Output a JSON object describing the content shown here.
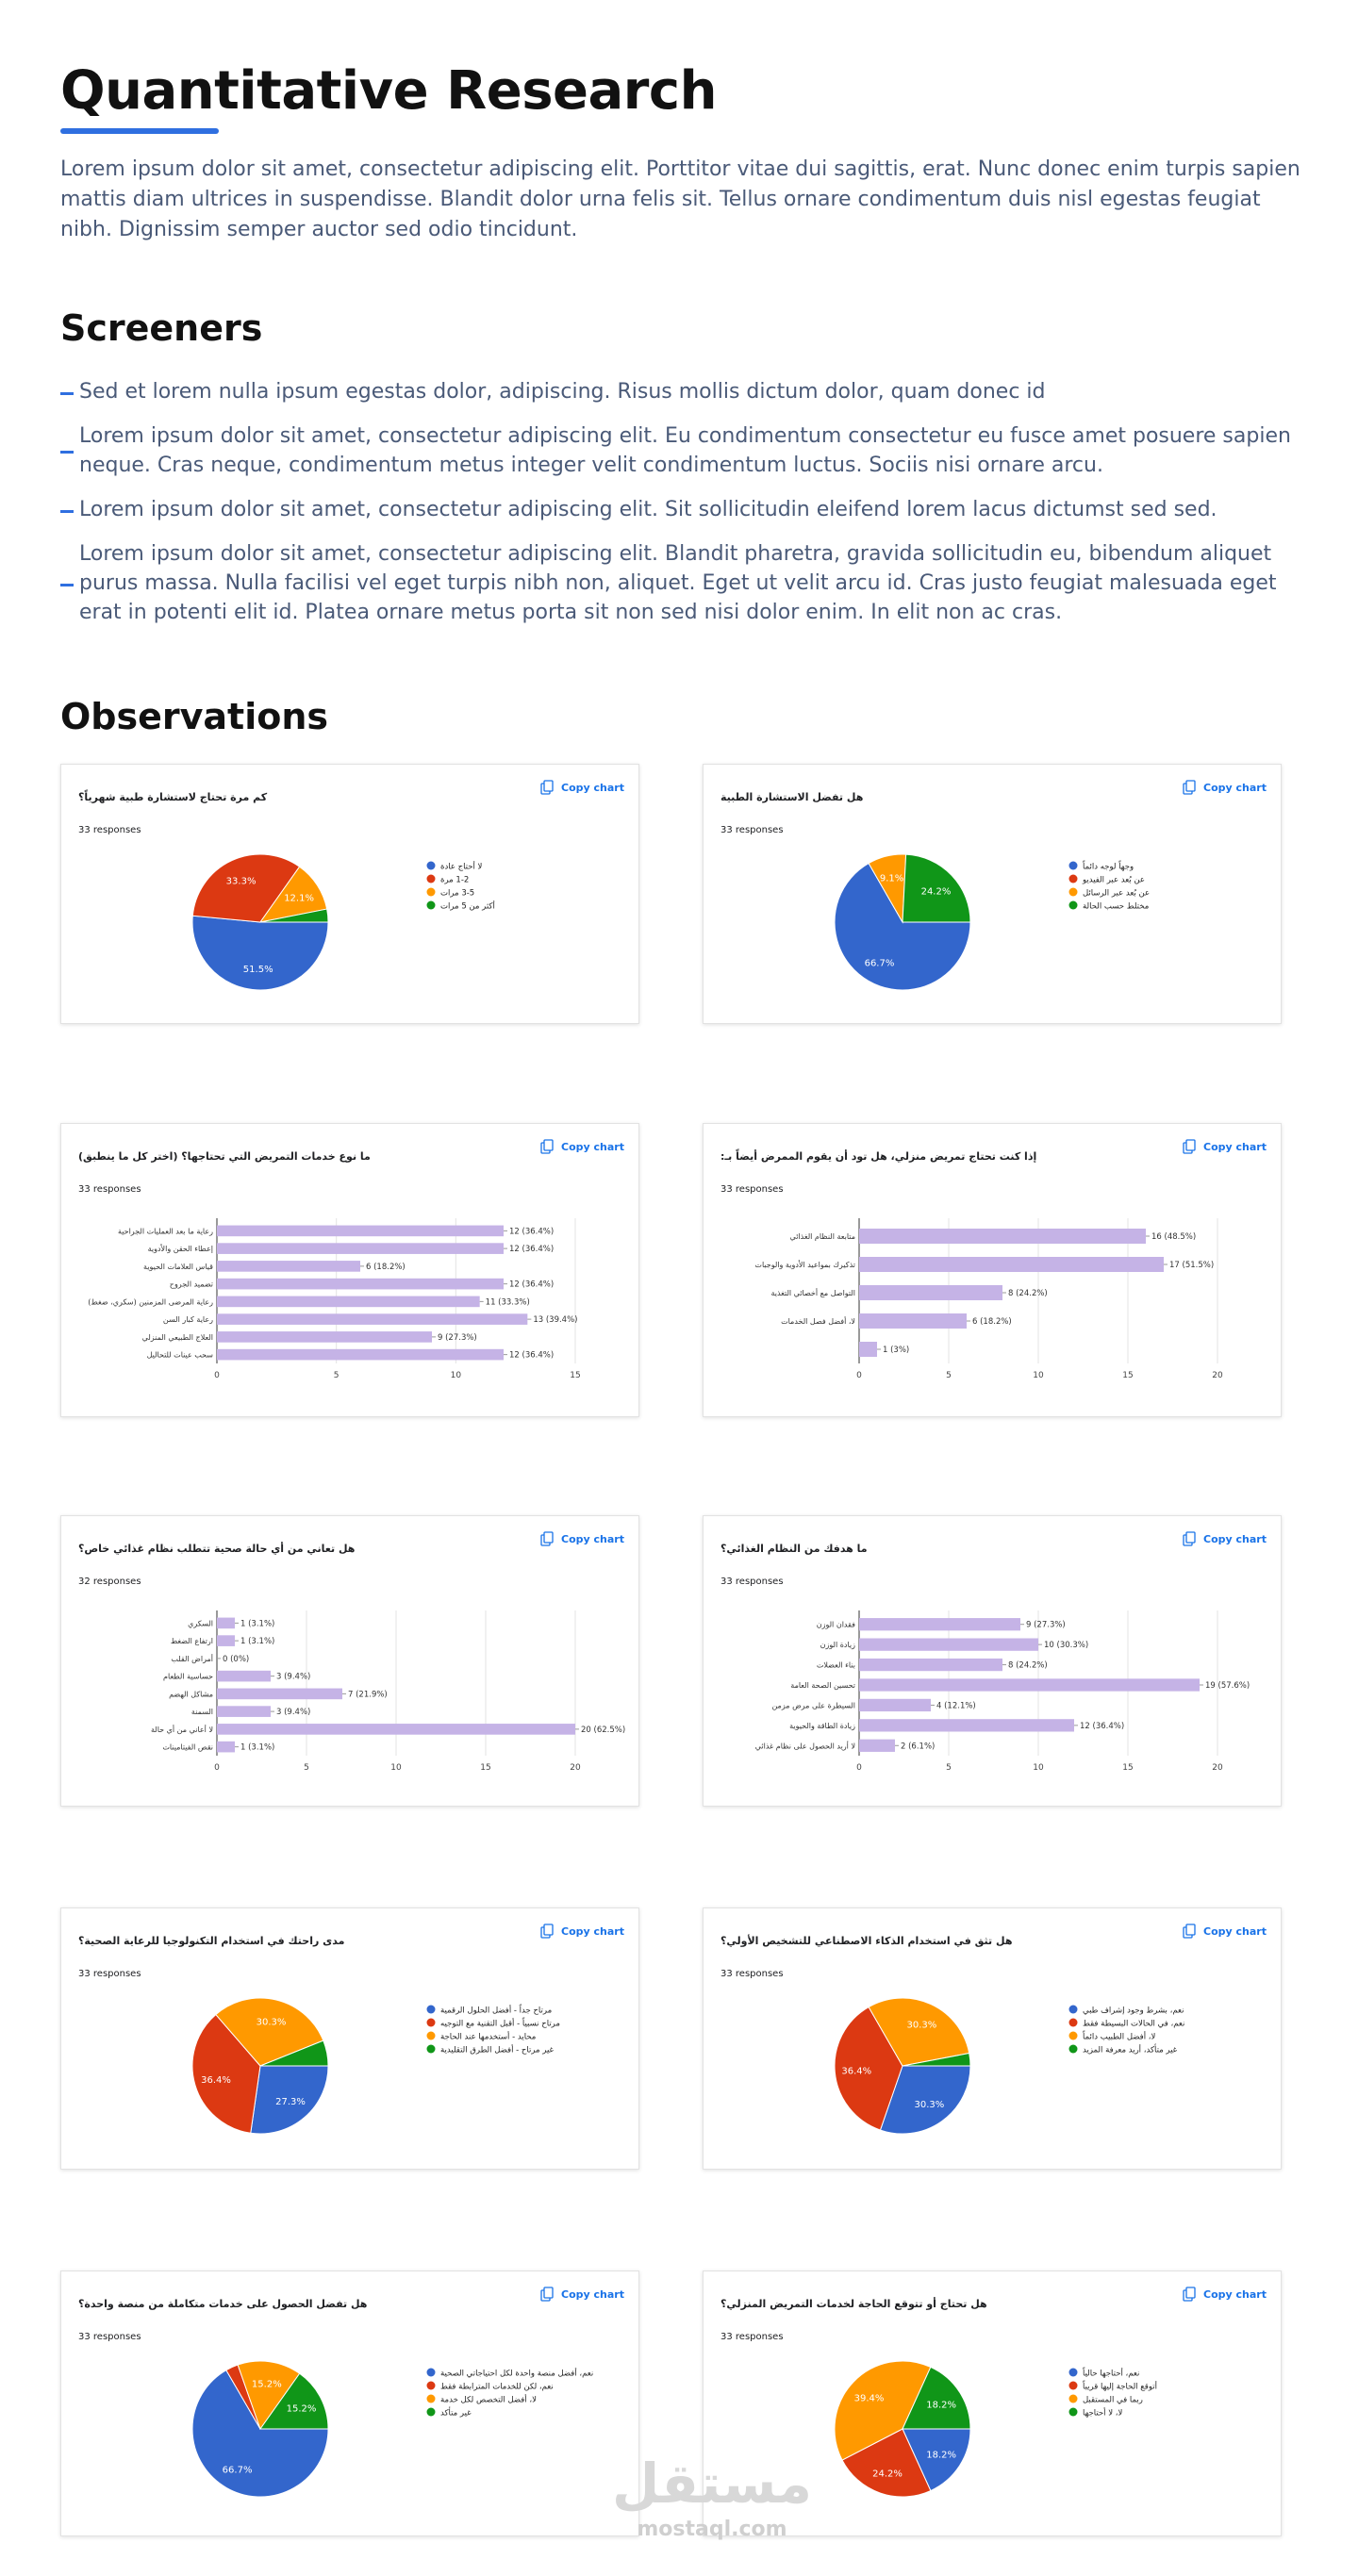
{
  "header": {
    "title": "Quantitative Research",
    "body": "Lorem ipsum dolor sit amet, consectetur adipiscing elit. Porttitor vitae dui sagittis, erat. Nunc donec enim turpis sapien mattis diam ultrices in suspendisse. Blandit dolor urna felis sit. Tellus ornare condimentum duis nisl egestas feugiat nibh. Dignissim semper auctor sed odio tincidunt."
  },
  "screeners": {
    "title": "Screeners",
    "items": [
      "Sed et lorem nulla ipsum egestas dolor, adipiscing. Risus mollis dictum dolor, quam donec id",
      "Lorem ipsum dolor sit amet, consectetur adipiscing elit. Eu condimentum consectetur eu fusce amet posuere sapien neque. Cras neque, condimentum metus integer velit condimentum luctus. Sociis nisi ornare arcu.",
      "Lorem ipsum dolor sit amet, consectetur adipiscing elit. Sit sollicitudin eleifend lorem lacus dictumst sed sed.",
      "Lorem ipsum dolor sit amet, consectetur adipiscing elit. Blandit pharetra, gravida sollicitudin eu, bibendum aliquet purus massa. Nulla facilisi vel eget turpis nibh non, aliquet. Eget ut velit arcu id. Cras justo feugiat malesuada eget erat in potenti elit id. Platea ornare metus porta sit non sed nisi dolor enim. In elit non ac cras."
    ]
  },
  "observations": {
    "title": "Observations"
  },
  "chart_data": [
    {
      "type": "pie",
      "title": "كم مرة تحتاج لاستشارة طبية شهرياً؟",
      "subtitle": "33 responses",
      "action": "Copy chart",
      "categories": [
        "لا أحتاج عادة",
        "1-2 مرة",
        "3-5 مرات",
        "أكثر من 5 مرات"
      ],
      "values": [
        51.5,
        33.3,
        12.1,
        3.1
      ],
      "value_labels": [
        "51.5%",
        "33.3%",
        "12.1%",
        null
      ],
      "colors": [
        "#3366cc",
        "#dc3912",
        "#ff9900",
        "#109618"
      ]
    },
    {
      "type": "pie",
      "title": "هل تفضل الاستشارة الطبية",
      "subtitle": "33 responses",
      "action": "Copy chart",
      "categories": [
        "وجهاً لوجه دائماً",
        "عن بُعد عبر الفيديو",
        "عن بُعد عبر الرسائل",
        "مختلط حسب الحالة"
      ],
      "values": [
        66.7,
        0,
        9.1,
        24.2
      ],
      "value_labels": [
        "66.7%",
        null,
        "9.1%",
        "24.2%"
      ],
      "colors": [
        "#3366cc",
        "#dc3912",
        "#ff9900",
        "#109618"
      ]
    },
    {
      "type": "bar",
      "title": "ما نوع خدمات التمريض التي تحتاجها؟ (اختر كل ما ينطبق)",
      "subtitle": "33 responses",
      "action": "Copy chart",
      "categories": [
        "رعاية ما بعد العمليات الجراحية",
        "إعطاء الحقن والأدوية",
        "قياس العلامات الحيوية",
        "تضميد الجروح",
        "رعاية المرضى المزمنين (سكري، ضغط)",
        "رعاية كبار السن",
        "العلاج الطبيعي المنزلي",
        "سحب عينات للتحاليل"
      ],
      "values": [
        12,
        12,
        6,
        12,
        11,
        13,
        9,
        12
      ],
      "value_labels": [
        "12 (36.4%)",
        "12 (36.4%)",
        "6 (18.2%)",
        "12 (36.4%)",
        "11 (33.3%)",
        "13 (39.4%)",
        "9 (27.3%)",
        "12 (36.4%)"
      ],
      "color": "#c5b3e6",
      "xlim": [
        0,
        15
      ],
      "xticks": [
        0,
        5,
        10,
        15
      ],
      "grid": true
    },
    {
      "type": "bar",
      "title": "إذا كنت تحتاج تمريض منزلي، هل تود أن يقوم الممرض أيضاً بـ:",
      "subtitle": "33 responses",
      "action": "Copy chart",
      "categories": [
        "متابعة النظام الغذائي",
        "تذكيرك بمواعيد الأدوية والوجبات",
        "التواصل مع أخصائي التغذية",
        "لا، أفضل فصل الخدمات",
        null
      ],
      "values": [
        16,
        17,
        8,
        6,
        1
      ],
      "value_labels": [
        "16 (48.5%)",
        "17 (51.5%)",
        "8 (24.2%)",
        "6 (18.2%)",
        "1 (3%)"
      ],
      "color": "#c5b3e6",
      "xlim": [
        0,
        20
      ],
      "xticks": [
        0,
        5,
        10,
        15,
        20
      ],
      "grid": true
    },
    {
      "type": "bar",
      "title": "هل تعاني من أي حالة صحية تتطلب نظام غذائي خاص؟",
      "subtitle": "32 responses",
      "action": "Copy chart",
      "categories": [
        "السكري",
        "ارتفاع الضغط",
        "أمراض القلب",
        "حساسية الطعام",
        "مشاكل الهضم",
        "السمنة",
        "لا أعاني من أي حالة",
        "نقص الفيتامينات"
      ],
      "values": [
        1,
        1,
        0,
        3,
        7,
        3,
        20,
        1
      ],
      "value_labels": [
        "1 (3.1%)",
        "1 (3.1%)",
        "0 (0%)",
        "3 (9.4%)",
        "7 (21.9%)",
        "3 (9.4%)",
        "20 (62.5%)",
        "1 (3.1%)"
      ],
      "color": "#c5b3e6",
      "xlim": [
        0,
        20
      ],
      "xticks": [
        0,
        5,
        10,
        15,
        20
      ],
      "grid": true
    },
    {
      "type": "bar",
      "title": "ما هدفك من النظام الغذائي؟",
      "subtitle": "33 responses",
      "action": "Copy chart",
      "categories": [
        "فقدان الوزن",
        "زيادة الوزن",
        "بناء العضلات",
        "تحسين الصحة العامة",
        "السيطرة على مرض مزمن",
        "زيادة الطاقة والحيوية",
        "لا أريد الحصول على نظام غذائي"
      ],
      "values": [
        9,
        10,
        8,
        19,
        4,
        12,
        2
      ],
      "value_labels": [
        "9 (27.3%)",
        "10 (30.3%)",
        "8 (24.2%)",
        "19 (57.6%)",
        "4 (12.1%)",
        "12 (36.4%)",
        "2 (6.1%)"
      ],
      "color": "#c5b3e6",
      "xlim": [
        0,
        20
      ],
      "xticks": [
        0,
        5,
        10,
        15,
        20
      ],
      "grid": true
    },
    {
      "type": "pie",
      "title": "مدى راحتك في استخدام التكنولوجيا للرعاية الصحية؟",
      "subtitle": "33 responses",
      "action": "Copy chart",
      "categories": [
        "مرتاح جداً - أفضل الحلول الرقمية",
        "مرتاح نسبياً - أقبل التقنية مع التوجيه",
        "محايد - أستخدمها عند الحاجة",
        "غير مرتاح - أفضل الطرق التقليدية"
      ],
      "values": [
        27.3,
        36.4,
        30.3,
        6.1
      ],
      "value_labels": [
        "27.3%",
        "36.4%",
        "30.3%",
        null
      ],
      "colors": [
        "#3366cc",
        "#dc3912",
        "#ff9900",
        "#109618"
      ]
    },
    {
      "type": "pie",
      "title": "هل تثق في استخدام الذكاء الاصطناعي للتشخيص الأولي؟",
      "subtitle": "33 responses",
      "action": "Copy chart",
      "categories": [
        "نعم، بشرط وجود إشراف طبي",
        "نعم، في الحالات البسيطة فقط",
        "لا، أفضل الطبيب دائماً",
        "غير متأكد، أريد معرفة المزيد"
      ],
      "values": [
        30.3,
        36.4,
        30.3,
        3
      ],
      "value_labels": [
        "30.3%",
        "36.4%",
        "30.3%",
        null
      ],
      "colors": [
        "#3366cc",
        "#dc3912",
        "#ff9900",
        "#109618"
      ]
    },
    {
      "type": "pie",
      "title": "هل تفضل الحصول على خدمات متكاملة من منصة واحدة؟",
      "subtitle": "33 responses",
      "action": "Copy chart",
      "categories": [
        "نعم، أفضل منصة واحدة لكل احتياجاتي الصحية",
        "نعم، لكن للخدمات المترابطة فقط",
        "لا، أفضل التخصص لكل خدمة",
        "غير متأكد"
      ],
      "values": [
        66.7,
        3,
        15.2,
        15.2
      ],
      "value_labels": [
        "66.7%",
        null,
        "15.2%",
        "15.2%"
      ],
      "colors": [
        "#3366cc",
        "#dc3912",
        "#ff9900",
        "#109618"
      ]
    },
    {
      "type": "pie",
      "title": "هل تحتاج أو تتوقع الحاجة لخدمات التمريض المنزلي؟",
      "subtitle": "33 responses",
      "action": "Copy chart",
      "categories": [
        "نعم، أحتاجها حالياً",
        "أتوقع الحاجة إليها قريباً",
        "ربما في المستقبل",
        "لا، لا أحتاجها"
      ],
      "values": [
        18.2,
        24.2,
        39.4,
        18.2
      ],
      "value_labels": [
        "18.2%",
        "24.2%",
        "39.4%",
        "18.2%"
      ],
      "colors": [
        "#3366cc",
        "#dc3912",
        "#ff9900",
        "#109618"
      ]
    }
  ],
  "watermark": {
    "logo": "مستقل",
    "site": "mostaql.com"
  }
}
